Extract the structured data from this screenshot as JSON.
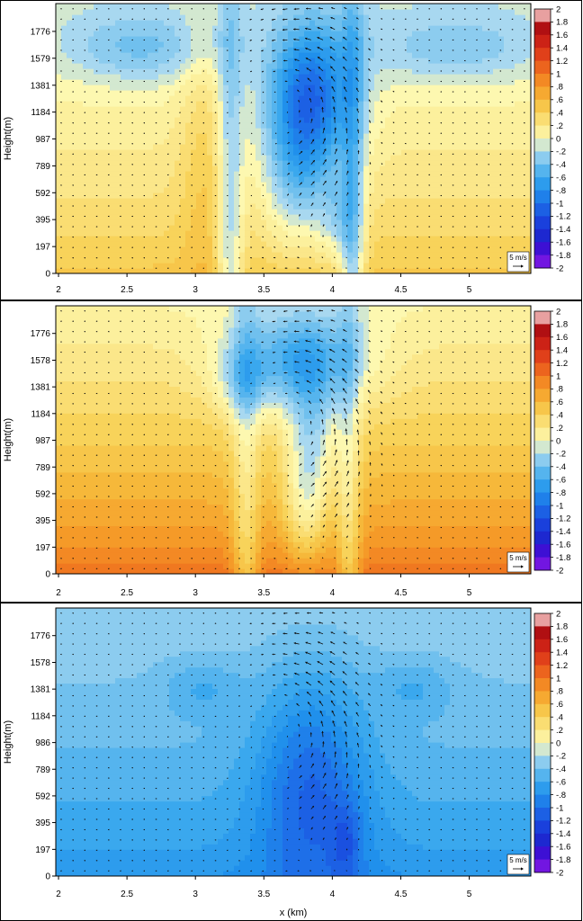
{
  "chart_data": [
    {
      "type": "heatmap",
      "panel": 1,
      "title": "",
      "xlabel": "",
      "ylabel": "Height(m)",
      "xlim": [
        1.98,
        5.45
      ],
      "ylim": [
        0,
        1980
      ],
      "x_ticks": [
        "2",
        "2.5",
        "3",
        "3.5",
        "4",
        "4.5",
        "5"
      ],
      "y_ticks": [
        "0",
        "197",
        "395",
        "592",
        "789",
        "987",
        "1184",
        "1381",
        "1579",
        "1776"
      ],
      "colorbar_ticks": [
        "2",
        "1.8",
        "1.6",
        "1.4",
        "1.2",
        "1",
        ".8",
        ".6",
        ".4",
        ".2",
        "0",
        "-.2",
        "-.4",
        "-.6",
        "-.8",
        "-1",
        "-1.2",
        "-1.4",
        "-1.6",
        "-1.8",
        "-2"
      ],
      "vector_key": "5 m/s",
      "field": {
        "base_surface": 0.5,
        "base_top": -0.1,
        "shift": 0,
        "gap_amp": 0.6,
        "gaps": [
          {
            "x": 3.25,
            "w": 0.07
          },
          {
            "x": 4.15,
            "w": 0.06
          }
        ],
        "blobs": [
          {
            "x": 3.85,
            "y": 1300,
            "sx": 0.22,
            "sy": 380,
            "a": -1.0
          },
          {
            "x": 3.75,
            "y": 700,
            "sx": 0.18,
            "sy": 400,
            "a": -0.5
          },
          {
            "x": 4.05,
            "y": 400,
            "sx": 0.1,
            "sy": 250,
            "a": -0.4
          },
          {
            "x": 3.07,
            "y": 900,
            "sx": 0.13,
            "sy": 700,
            "a": 0.25
          },
          {
            "x": 2.6,
            "y": 1650,
            "sx": 0.4,
            "sy": 180,
            "a": -0.35
          },
          {
            "x": 4.9,
            "y": 1650,
            "sx": 0.45,
            "sy": 180,
            "a": -0.3
          }
        ],
        "vortices": [
          {
            "x": 3.85,
            "y": 1250,
            "s": 1
          }
        ]
      }
    },
    {
      "type": "heatmap",
      "panel": 2,
      "title": "",
      "xlabel": "",
      "ylabel": "Height(m)",
      "xlim": [
        1.98,
        5.45
      ],
      "ylim": [
        0,
        1980
      ],
      "x_ticks": [
        "2",
        "2.5",
        "3",
        "3.5",
        "4",
        "4.5",
        "5"
      ],
      "y_ticks": [
        "0",
        "197",
        "395",
        "592",
        "789",
        "987",
        "1184",
        "1381",
        "1578",
        "1776"
      ],
      "colorbar_ticks": [
        "2",
        "1.8",
        "1.6",
        "1.4",
        "1.2",
        "1",
        ".8",
        ".6",
        ".4",
        ".2",
        "0",
        "-.2",
        "-.4",
        "-.6",
        "-.8",
        "-1",
        "-1.2",
        "-1.4",
        "-1.6",
        "-1.8",
        "-2"
      ],
      "vector_key": "5 m/s",
      "field": {
        "base_surface": 1.05,
        "base_top": 0.05,
        "shift": 0,
        "gap_amp": 0.5,
        "gaps": [
          {
            "x": 3.37,
            "w": 0.07
          },
          {
            "x": 4.12,
            "w": 0.06
          }
        ],
        "blobs": [
          {
            "x": 3.75,
            "y": 1580,
            "sx": 0.35,
            "sy": 260,
            "a": -0.7
          },
          {
            "x": 3.85,
            "y": 1000,
            "sx": 0.14,
            "sy": 420,
            "a": -0.55
          },
          {
            "x": 3.8,
            "y": 450,
            "sx": 0.12,
            "sy": 300,
            "a": -0.4
          },
          {
            "x": 3.35,
            "y": 1400,
            "sx": 0.14,
            "sy": 180,
            "a": -0.3
          }
        ],
        "vortices": [
          {
            "x": 3.9,
            "y": 1100,
            "s": 1
          }
        ]
      }
    },
    {
      "type": "heatmap",
      "panel": 3,
      "title": "",
      "xlabel": "x (km)",
      "ylabel": "Height(m)",
      "xlim": [
        1.98,
        5.45
      ],
      "ylim": [
        0,
        1980
      ],
      "x_ticks": [
        "2",
        "2.5",
        "3",
        "3.5",
        "4",
        "4.5",
        "5"
      ],
      "y_ticks": [
        "0",
        "197",
        "395",
        "592",
        "789",
        "986",
        "1184",
        "1381",
        "1578",
        "1776"
      ],
      "colorbar_ticks": [
        "2",
        "1.8",
        "1.6",
        "1.4",
        "1.2",
        "1",
        ".8",
        ".6",
        ".4",
        ".2",
        "0",
        "-.2",
        "-.4",
        "-.6",
        "-.8",
        "-1",
        "-1.2",
        "-1.4",
        "-1.6",
        "-1.8",
        "-2"
      ],
      "vector_key": "5 m/s",
      "field": {
        "base_surface": -0.75,
        "base_top": -0.25,
        "shift": 0,
        "gap_amp": 0,
        "gaps": [],
        "blobs": [
          {
            "x": 3.85,
            "y": 700,
            "sx": 0.28,
            "sy": 600,
            "a": -0.55
          },
          {
            "x": 4.1,
            "y": 250,
            "sx": 0.08,
            "sy": 200,
            "a": -0.3
          },
          {
            "x": 3.05,
            "y": 1400,
            "sx": 0.2,
            "sy": 150,
            "a": -0.2
          },
          {
            "x": 4.6,
            "y": 1400,
            "sx": 0.2,
            "sy": 150,
            "a": -0.2
          }
        ],
        "vortices": [
          {
            "x": 3.85,
            "y": 1000,
            "s": 1
          }
        ]
      }
    }
  ]
}
